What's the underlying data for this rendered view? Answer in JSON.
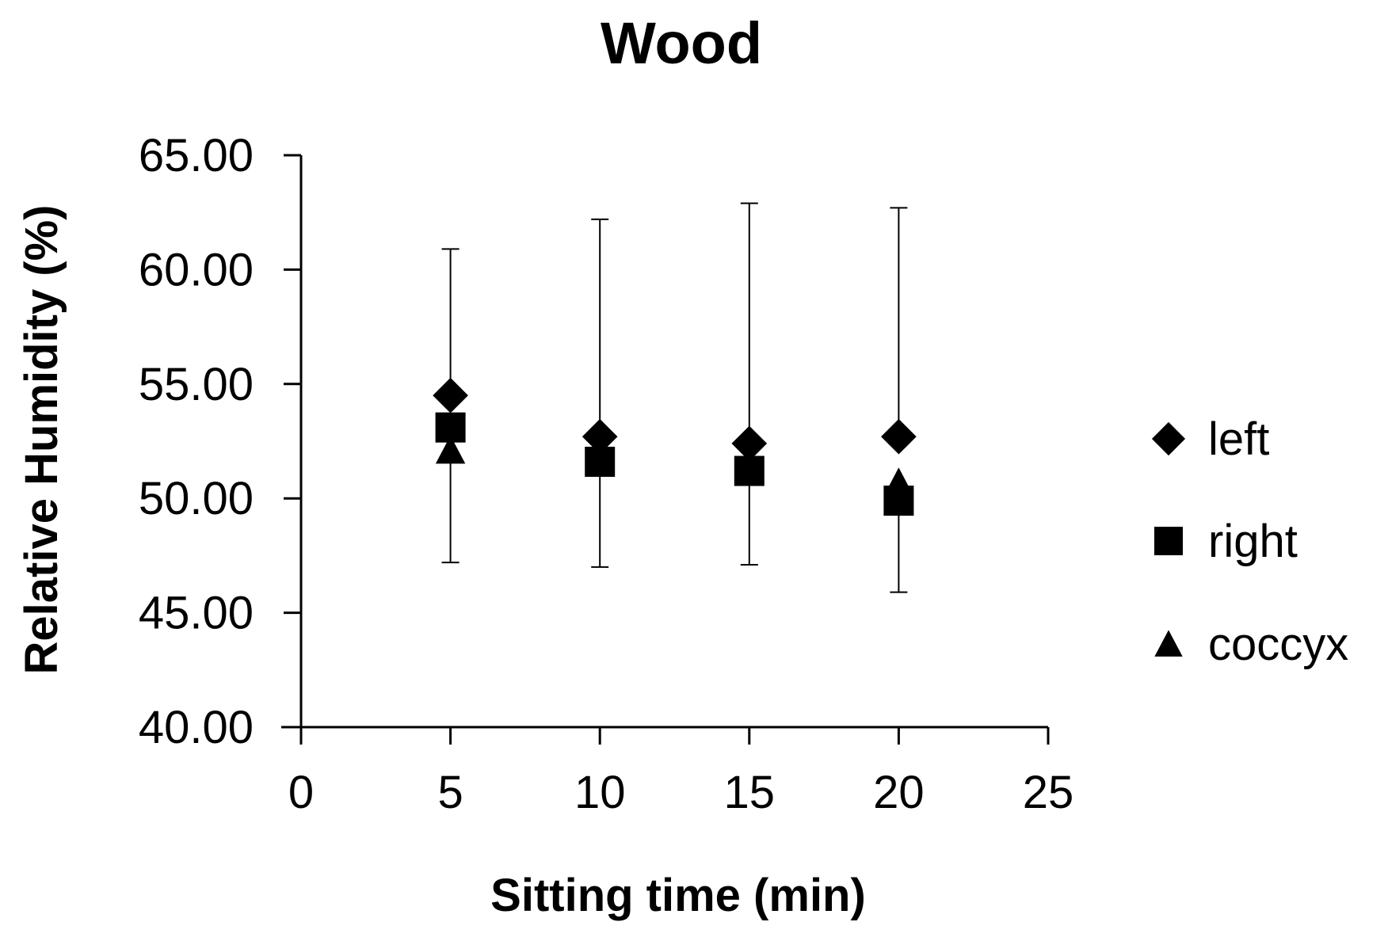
{
  "chart_data": {
    "type": "scatter",
    "title": "Wood",
    "xlabel": "Sitting time (min)",
    "ylabel": "Relative Humidity (%)",
    "xlim": [
      0,
      25
    ],
    "ylim": [
      40,
      65
    ],
    "xticks": [
      "0",
      "5",
      "10",
      "15",
      "20",
      "25"
    ],
    "yticks": [
      "40.00",
      "45.00",
      "50.00",
      "55.00",
      "60.00",
      "65.00"
    ],
    "grid": false,
    "legend_position": "right",
    "series": [
      {
        "name": "left",
        "marker": "diamond",
        "x": [
          5,
          10,
          15,
          20
        ],
        "y": [
          54.5,
          52.7,
          52.4,
          52.7
        ],
        "error_high": [
          60.9,
          62.2,
          62.9,
          62.7
        ]
      },
      {
        "name": "right",
        "marker": "square",
        "x": [
          5,
          10,
          15,
          20
        ],
        "y": [
          53.1,
          51.6,
          51.2,
          49.9
        ],
        "error_low": [
          47.2,
          47.0,
          47.1,
          45.9
        ]
      },
      {
        "name": "coccyx",
        "marker": "triangle",
        "x": [
          5,
          10,
          15,
          20
        ],
        "y": [
          52.1,
          51.8,
          51.5,
          50.7
        ]
      }
    ]
  }
}
